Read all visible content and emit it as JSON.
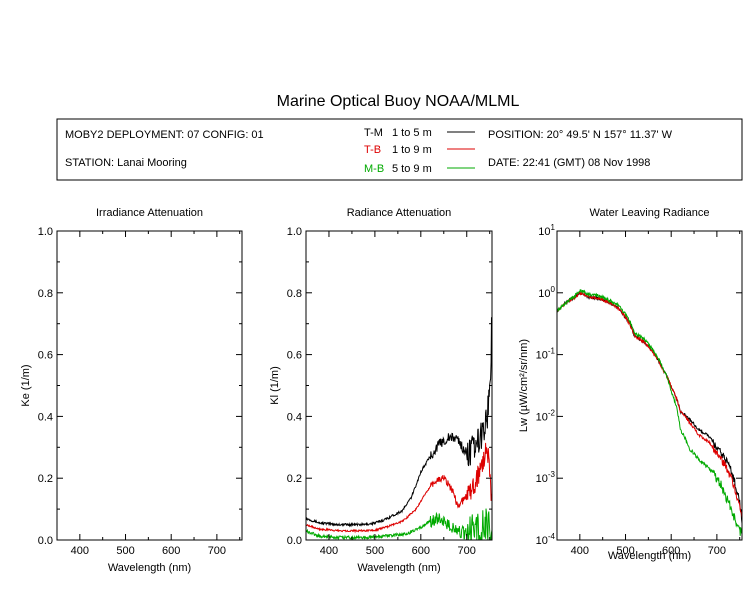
{
  "title": "Marine Optical Buoy NOAA/MLML",
  "info": {
    "deployment": "MOBY2 DEPLOYMENT: 07 CONFIG: 01",
    "station": "STATION: Lanai Mooring",
    "position": "POSITION: 20° 49.5' N   157° 11.37' W",
    "date": "DATE: 22:41 (GMT) 08 Nov 1998"
  },
  "legend": [
    {
      "code": "T-M",
      "range": "1 to 5  m",
      "color": "#000000"
    },
    {
      "code": "T-B",
      "range": "1 to 9  m",
      "color": "#dd0000"
    },
    {
      "code": "M-B",
      "range": "5 to 9  m",
      "color": "#00aa00"
    }
  ],
  "chart_data": [
    {
      "type": "line",
      "title": "Irradiance Attenuation",
      "xlabel": "Wavelength (nm)",
      "ylabel": "Ke  (1/m)",
      "xlim": [
        350,
        755
      ],
      "ylim": [
        0,
        1
      ],
      "xticks": [
        "400",
        "500",
        "600",
        "700"
      ],
      "yticks": [
        "0.0",
        "0.2",
        "0.4",
        "0.6",
        "0.8",
        "1.0"
      ],
      "series": []
    },
    {
      "type": "line",
      "title": "Radiance Attenuation",
      "xlabel": "Wavelength (nm)",
      "ylabel": "Kl  (1/m)",
      "xlim": [
        350,
        755
      ],
      "ylim": [
        0,
        1
      ],
      "xticks": [
        "400",
        "500",
        "600",
        "700"
      ],
      "yticks": [
        "0.0",
        "0.2",
        "0.4",
        "0.6",
        "0.8",
        "1.0"
      ],
      "series": [
        {
          "name": "T-M",
          "color": "#000000",
          "noise": 0.004,
          "points": [
            [
              350,
              0.07
            ],
            [
              380,
              0.055
            ],
            [
              420,
              0.05
            ],
            [
              480,
              0.05
            ],
            [
              500,
              0.055
            ],
            [
              520,
              0.065
            ],
            [
              560,
              0.095
            ],
            [
              580,
              0.14
            ],
            [
              600,
              0.22
            ],
            [
              620,
              0.27
            ],
            [
              640,
              0.31
            ],
            [
              660,
              0.33
            ],
            [
              680,
              0.33
            ],
            [
              690,
              0.3
            ],
            [
              700,
              0.28
            ],
            [
              720,
              0.3
            ],
            [
              735,
              0.35
            ],
            [
              745,
              0.4
            ],
            [
              752,
              0.55
            ],
            [
              755,
              0.74
            ]
          ]
        },
        {
          "name": "T-B",
          "color": "#dd0000",
          "noise": 0.003,
          "points": [
            [
              350,
              0.05
            ],
            [
              380,
              0.035
            ],
            [
              420,
              0.03
            ],
            [
              480,
              0.03
            ],
            [
              500,
              0.032
            ],
            [
              520,
              0.04
            ],
            [
              560,
              0.06
            ],
            [
              590,
              0.1
            ],
            [
              610,
              0.15
            ],
            [
              630,
              0.19
            ],
            [
              650,
              0.2
            ],
            [
              670,
              0.16
            ],
            [
              680,
              0.11
            ],
            [
              700,
              0.14
            ],
            [
              720,
              0.19
            ],
            [
              735,
              0.25
            ],
            [
              745,
              0.3
            ],
            [
              755,
              0.12
            ]
          ]
        },
        {
          "name": "M-B",
          "color": "#00aa00",
          "noise": 0.005,
          "points": [
            [
              350,
              0.03
            ],
            [
              380,
              0.012
            ],
            [
              420,
              0.008
            ],
            [
              480,
              0.008
            ],
            [
              500,
              0.01
            ],
            [
              540,
              0.015
            ],
            [
              570,
              0.02
            ],
            [
              600,
              0.04
            ],
            [
              620,
              0.06
            ],
            [
              640,
              0.07
            ],
            [
              660,
              0.05
            ],
            [
              680,
              0.03
            ],
            [
              700,
              0.02
            ],
            [
              720,
              0.03
            ],
            [
              740,
              0.05
            ],
            [
              755,
              0.04
            ]
          ]
        }
      ]
    },
    {
      "type": "line",
      "title": "Water Leaving Radiance",
      "xlabel": "Wavelength (nm)",
      "ylabel": "Lw  (µW/cm²/sr/nm)",
      "yscale": "log",
      "xlim": [
        350,
        755
      ],
      "ylim": [
        0.0001,
        10
      ],
      "xticks": [
        "400",
        "500",
        "600",
        "700"
      ],
      "yticks": [
        {
          "base": "10",
          "exp": "-4"
        },
        {
          "base": "10",
          "exp": "-3"
        },
        {
          "base": "10",
          "exp": "-2"
        },
        {
          "base": "10",
          "exp": "-1"
        },
        {
          "base": "10",
          "exp": "0"
        },
        {
          "base": "10",
          "exp": "1"
        }
      ],
      "series": [
        {
          "name": "T-M",
          "color": "#000000",
          "noise": 0.05,
          "points": [
            [
              350,
              0.5
            ],
            [
              370,
              0.7
            ],
            [
              390,
              0.85
            ],
            [
              400,
              1.0
            ],
            [
              420,
              0.85
            ],
            [
              440,
              0.82
            ],
            [
              460,
              0.72
            ],
            [
              480,
              0.6
            ],
            [
              500,
              0.4
            ],
            [
              520,
              0.2
            ],
            [
              540,
              0.16
            ],
            [
              560,
              0.11
            ],
            [
              580,
              0.06
            ],
            [
              600,
              0.03
            ],
            [
              620,
              0.012
            ],
            [
              640,
              0.009
            ],
            [
              660,
              0.006
            ],
            [
              680,
              0.005
            ],
            [
              700,
              0.003
            ],
            [
              720,
              0.002
            ],
            [
              740,
              0.0008
            ],
            [
              755,
              0.0002
            ]
          ]
        },
        {
          "name": "T-B",
          "color": "#dd0000",
          "noise": 0.05,
          "points": [
            [
              350,
              0.5
            ],
            [
              370,
              0.7
            ],
            [
              390,
              0.85
            ],
            [
              400,
              1.0
            ],
            [
              420,
              0.85
            ],
            [
              440,
              0.82
            ],
            [
              460,
              0.72
            ],
            [
              480,
              0.6
            ],
            [
              500,
              0.4
            ],
            [
              520,
              0.2
            ],
            [
              540,
              0.16
            ],
            [
              560,
              0.11
            ],
            [
              580,
              0.06
            ],
            [
              600,
              0.03
            ],
            [
              620,
              0.012
            ],
            [
              640,
              0.008
            ],
            [
              660,
              0.005
            ],
            [
              680,
              0.004
            ],
            [
              700,
              0.0025
            ],
            [
              720,
              0.0015
            ],
            [
              740,
              0.0006
            ],
            [
              755,
              0.0002
            ]
          ]
        },
        {
          "name": "M-B",
          "color": "#00aa00",
          "noise": 0.06,
          "points": [
            [
              350,
              0.5
            ],
            [
              370,
              0.7
            ],
            [
              390,
              0.9
            ],
            [
              400,
              1.1
            ],
            [
              420,
              0.95
            ],
            [
              440,
              0.9
            ],
            [
              460,
              0.78
            ],
            [
              480,
              0.66
            ],
            [
              500,
              0.45
            ],
            [
              520,
              0.22
            ],
            [
              540,
              0.18
            ],
            [
              560,
              0.12
            ],
            [
              580,
              0.065
            ],
            [
              600,
              0.025
            ],
            [
              620,
              0.006
            ],
            [
              640,
              0.003
            ],
            [
              660,
              0.002
            ],
            [
              680,
              0.0015
            ],
            [
              700,
              0.001
            ],
            [
              720,
              0.0005
            ],
            [
              740,
              0.0002
            ],
            [
              755,
              0.00012
            ]
          ]
        }
      ]
    }
  ]
}
